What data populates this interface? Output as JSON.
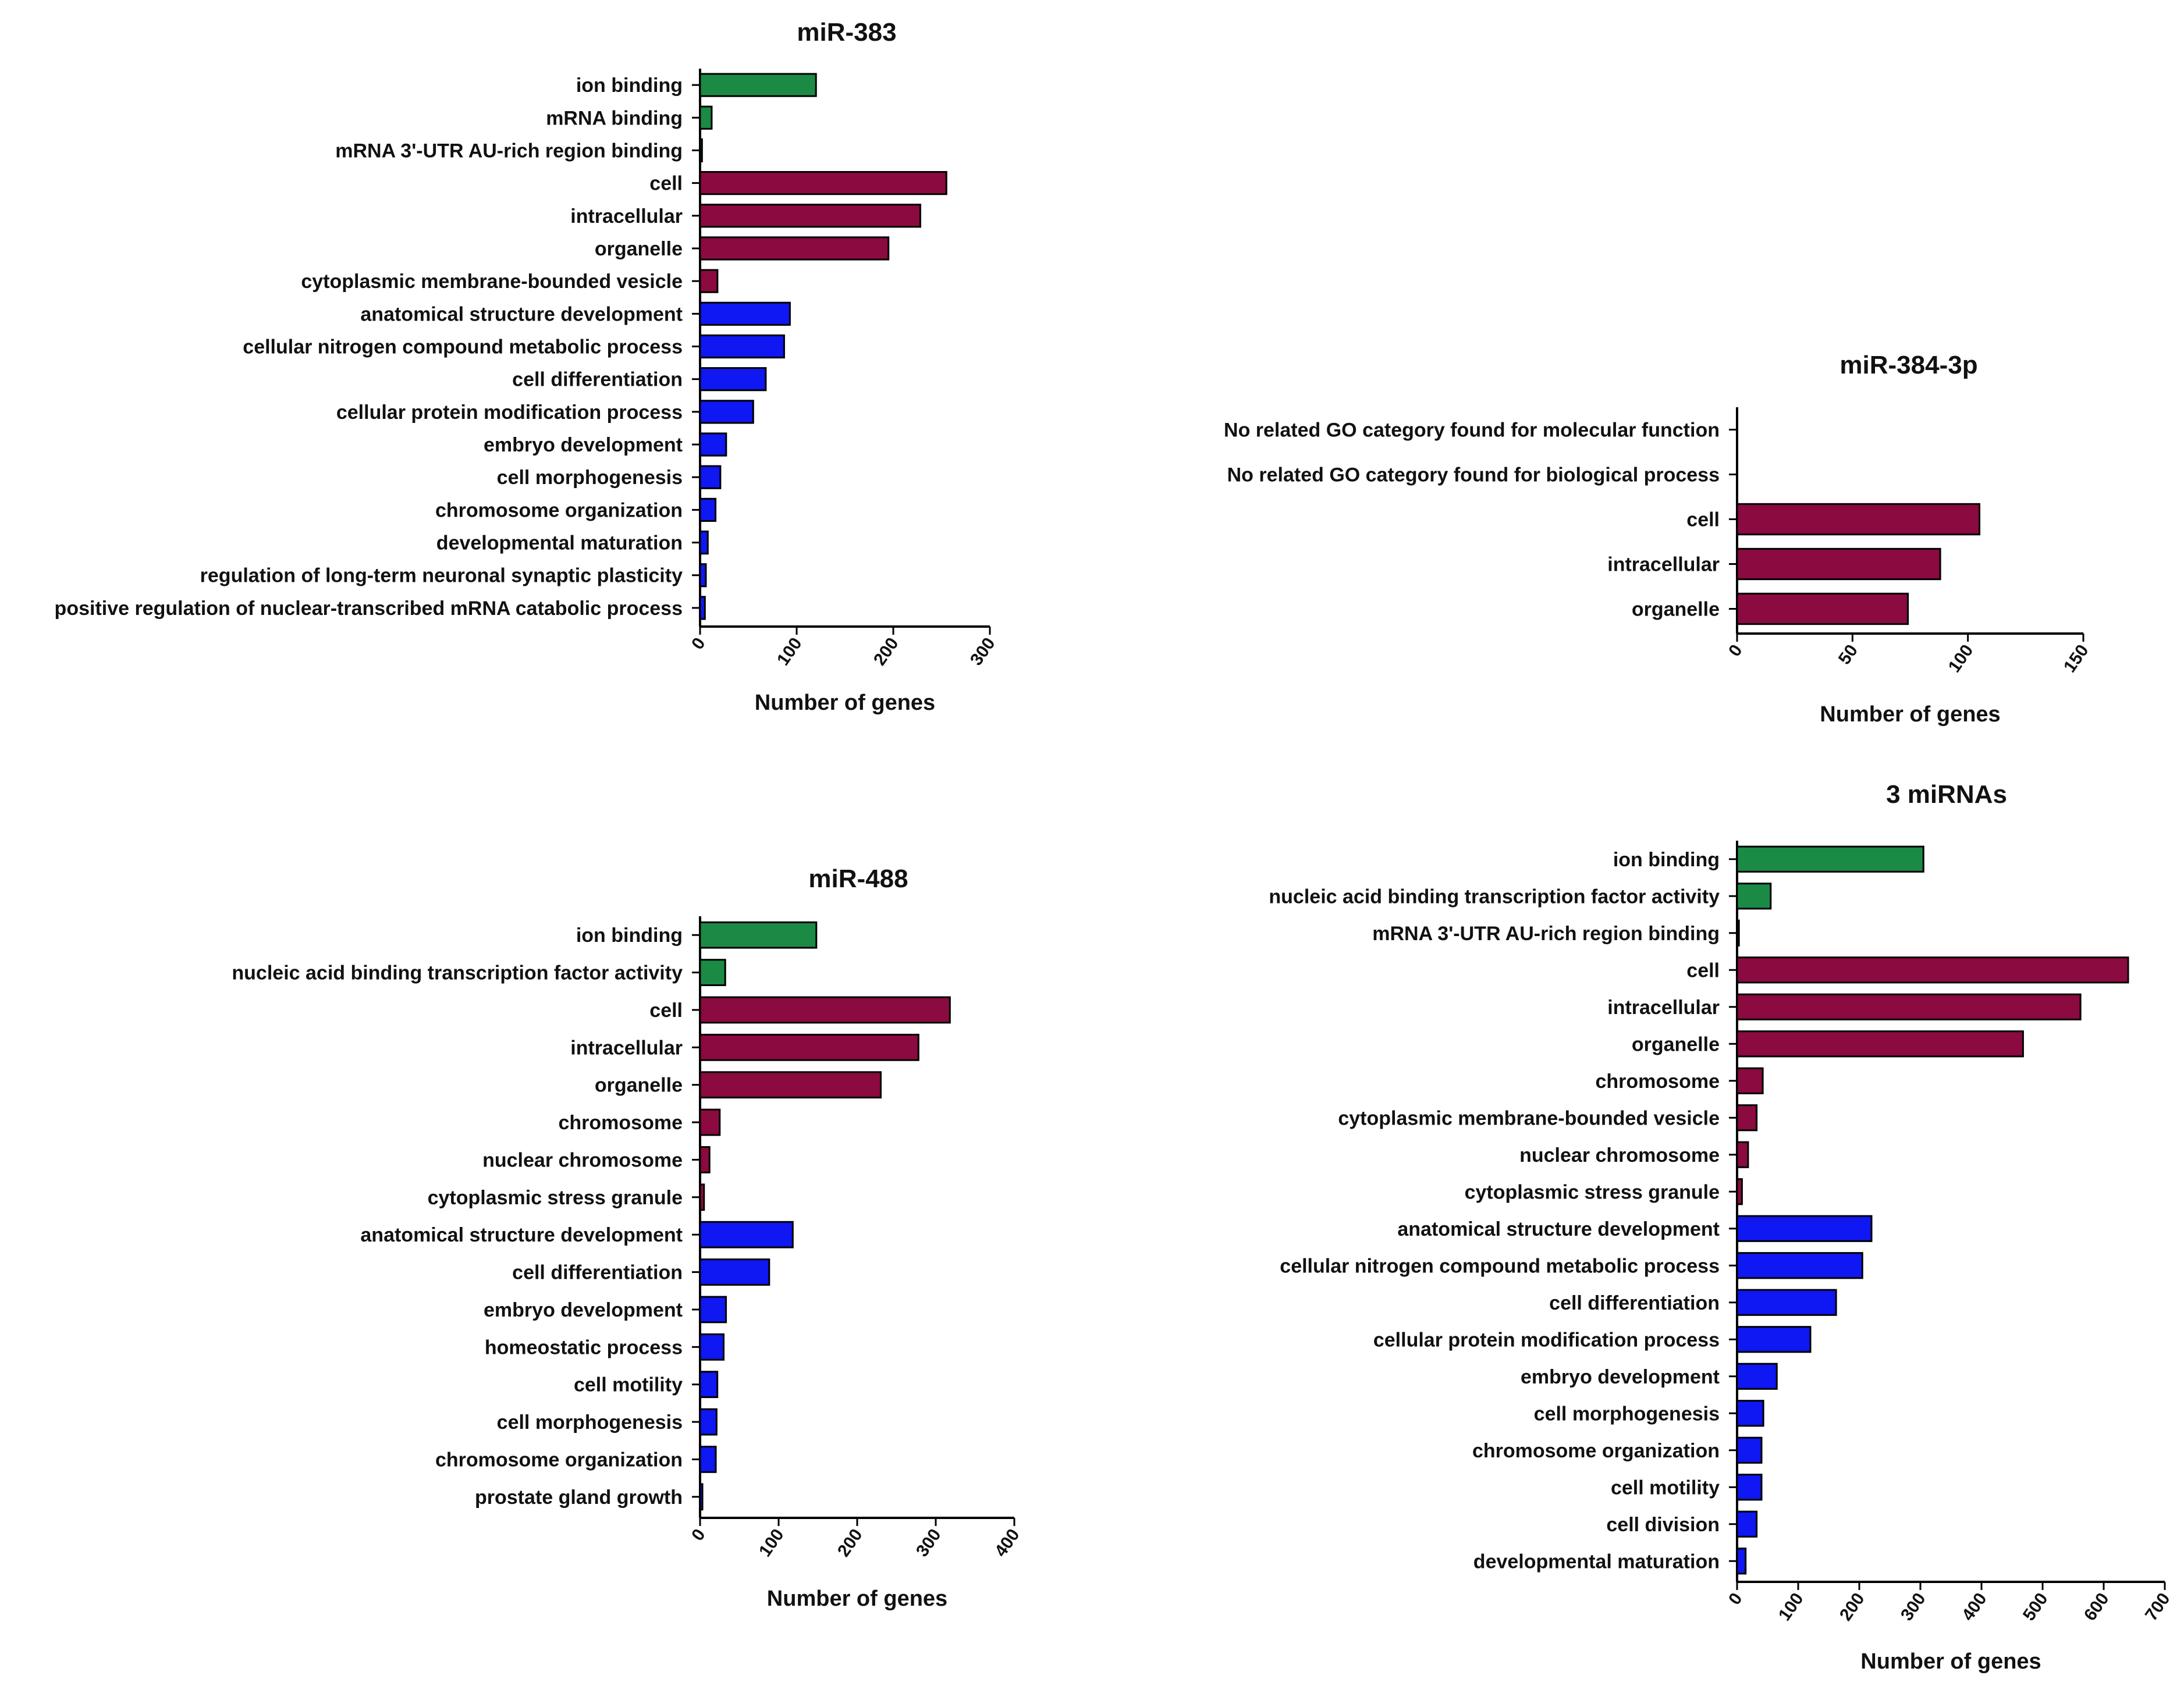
{
  "colors": {
    "molecular_function": "#1b8a45",
    "cellular_component": "#8b0a3f",
    "biological_process": "#0f17f2",
    "outline": "#000000"
  },
  "chart_data": [
    {
      "type": "bar",
      "orientation": "horizontal",
      "title": "miR-383",
      "xlabel": "Number of genes",
      "ylabel": "",
      "xlim": [
        0,
        300
      ],
      "xticks": [
        "0",
        "100",
        "200",
        "300"
      ],
      "categories": [
        "ion binding",
        "mRNA binding",
        "mRNA 3'-UTR AU-rich region binding",
        "cell",
        "intracellular",
        "organelle",
        "cytoplasmic membrane-bounded vesicle",
        "anatomical structure development",
        "cellular nitrogen compound metabolic process",
        "cell differentiation",
        "cellular protein modification process",
        "embryo development",
        "cell morphogenesis",
        "chromosome organization",
        "developmental maturation",
        "regulation of long-term neuronal synaptic plasticity",
        "positive regulation of nuclear-transcribed mRNA catabolic process"
      ],
      "values": [
        120,
        12,
        2,
        255,
        228,
        195,
        18,
        93,
        87,
        68,
        55,
        27,
        21,
        16,
        8,
        6,
        5
      ],
      "groups": [
        "MF",
        "MF",
        "MF",
        "CC",
        "CC",
        "CC",
        "CC",
        "BP",
        "BP",
        "BP",
        "BP",
        "BP",
        "BP",
        "BP",
        "BP",
        "BP",
        "BP"
      ]
    },
    {
      "type": "bar",
      "orientation": "horizontal",
      "title": "miR-384-3p",
      "xlabel": "Number of genes",
      "ylabel": "",
      "xlim": [
        0,
        150
      ],
      "xticks": [
        "0",
        "50",
        "100",
        "150"
      ],
      "categories": [
        "No related GO category found for molecular function",
        "No related GO category found for biological process",
        "cell",
        "intracellular",
        "organelle"
      ],
      "values": [
        0,
        0,
        105,
        88,
        74
      ],
      "groups": [
        "MF",
        "BP",
        "CC",
        "CC",
        "CC"
      ]
    },
    {
      "type": "bar",
      "orientation": "horizontal",
      "title": "miR-488",
      "xlabel": "Number of genes",
      "ylabel": "",
      "xlim": [
        0,
        400
      ],
      "xticks": [
        "0",
        "100",
        "200",
        "300",
        "400"
      ],
      "categories": [
        "ion binding",
        "nucleic acid binding transcription factor activity",
        "cell",
        "intracellular",
        "organelle",
        "chromosome",
        "nuclear chromosome",
        "cytoplasmic stress granule",
        "anatomical structure development",
        "cell differentiation",
        "embryo development",
        "homeostatic process",
        "cell motility",
        "cell morphogenesis",
        "chromosome organization",
        "prostate gland growth"
      ],
      "values": [
        148,
        32,
        318,
        278,
        230,
        25,
        12,
        5,
        118,
        88,
        33,
        30,
        22,
        21,
        20,
        3
      ],
      "groups": [
        "MF",
        "MF",
        "CC",
        "CC",
        "CC",
        "CC",
        "CC",
        "CC",
        "BP",
        "BP",
        "BP",
        "BP",
        "BP",
        "BP",
        "BP",
        "BP"
      ]
    },
    {
      "type": "bar",
      "orientation": "horizontal",
      "title": "3 miRNAs",
      "xlabel": "Number of genes",
      "ylabel": "",
      "xlim": [
        0,
        700
      ],
      "xticks": [
        "0",
        "100",
        "200",
        "300",
        "400",
        "500",
        "600",
        "700"
      ],
      "categories": [
        "ion binding",
        "nucleic acid binding transcription factor activity",
        "mRNA 3'-UTR AU-rich region binding",
        "cell",
        "intracellular",
        "organelle",
        "chromosome",
        "cytoplasmic membrane-bounded vesicle",
        "nuclear chromosome",
        "cytoplasmic stress granule",
        "anatomical structure development",
        "cellular nitrogen compound metabolic process",
        "cell differentiation",
        "cellular protein modification process",
        "embryo development",
        "cell morphogenesis",
        "chromosome organization",
        "cell motility",
        "cell division",
        "developmental maturation"
      ],
      "values": [
        305,
        55,
        3,
        640,
        562,
        468,
        42,
        32,
        18,
        8,
        220,
        205,
        162,
        120,
        65,
        43,
        40,
        40,
        32,
        14
      ],
      "groups": [
        "MF",
        "MF",
        "MF",
        "CC",
        "CC",
        "CC",
        "CC",
        "CC",
        "CC",
        "CC",
        "BP",
        "BP",
        "BP",
        "BP",
        "BP",
        "BP",
        "BP",
        "BP",
        "BP",
        "BP"
      ]
    }
  ]
}
